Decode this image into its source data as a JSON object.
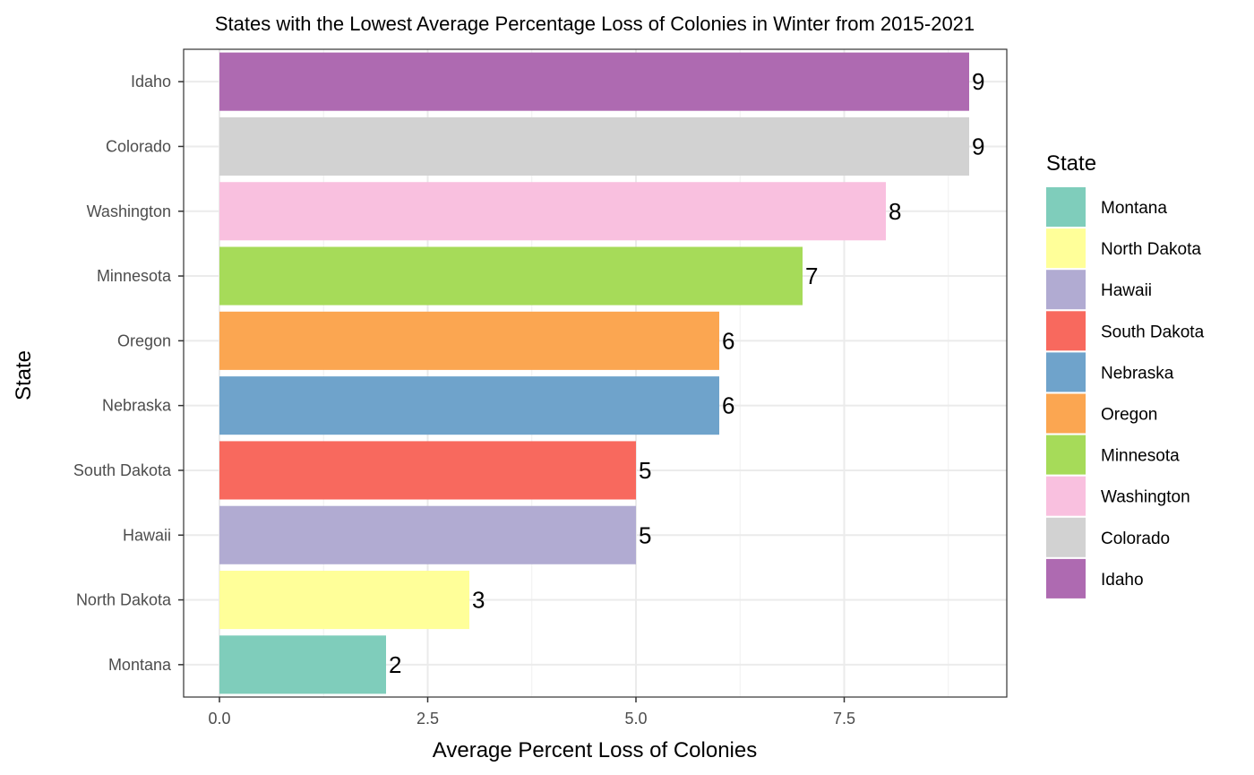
{
  "chart_data": {
    "type": "bar",
    "orientation": "horizontal",
    "title": "States with the Lowest Average Percentage Loss of Colonies in Winter from 2015-2021",
    "xlabel": "Average Percent Loss of Colonies",
    "ylabel": "State",
    "xlim": [
      -0.43,
      9.4
    ],
    "x_ticks": [
      "0.0",
      "2.5",
      "5.0",
      "7.5"
    ],
    "x_tick_values": [
      0,
      2.5,
      5,
      7.5
    ],
    "grid": true,
    "legend_title": "State",
    "legend_position": "right",
    "categories": [
      "Montana",
      "North Dakota",
      "Hawaii",
      "South Dakota",
      "Nebraska",
      "Oregon",
      "Minnesota",
      "Washington",
      "Colorado",
      "Idaho"
    ],
    "values": [
      2,
      3,
      5,
      5,
      6,
      6,
      7,
      8,
      9,
      9
    ],
    "value_labels": [
      "2",
      "3",
      "5",
      "5",
      "6",
      "6",
      "7",
      "8",
      "9",
      "9"
    ],
    "colors": [
      "#7fcdbb",
      "#ffff99",
      "#b1abd2",
      "#f8695e",
      "#6fa3cb",
      "#fba651",
      "#a6db59",
      "#f9c0df",
      "#d2d2d2",
      "#ae6ab1"
    ],
    "legend_items": [
      "Montana",
      "North Dakota",
      "Hawaii",
      "South Dakota",
      "Nebraska",
      "Oregon",
      "Minnesota",
      "Washington",
      "Colorado",
      "Idaho"
    ]
  }
}
